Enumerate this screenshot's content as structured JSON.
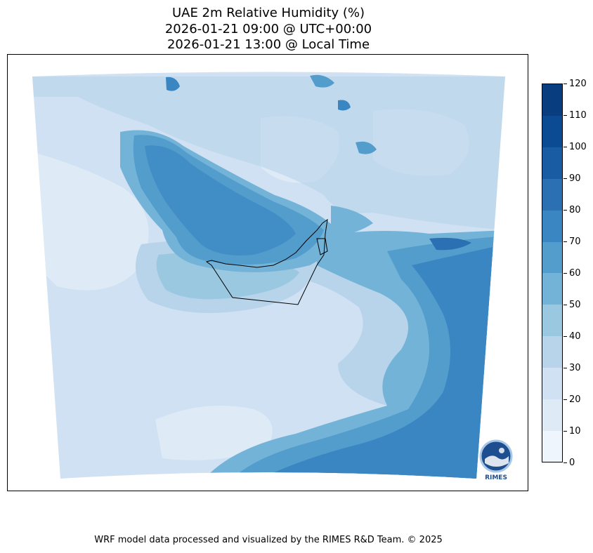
{
  "title": {
    "line1": "UAE 2m Relative Humidity (%)",
    "line2": "2026-01-21 09:00 @ UTC+00:00",
    "line3": "2026-01-21 13:00 @ Local Time"
  },
  "colorbar": {
    "ticks": [
      "120",
      "110",
      "100",
      "90",
      "80",
      "70",
      "60",
      "50",
      "40",
      "30",
      "20",
      "10",
      "0"
    ],
    "levels": [
      0,
      10,
      20,
      30,
      40,
      50,
      60,
      70,
      80,
      90,
      100,
      110,
      120
    ],
    "colors": [
      "#eef5fc",
      "#deebf7",
      "#cfe1f2",
      "#b7d4ea",
      "#9ac8e0",
      "#73b3d8",
      "#529dcc",
      "#3a86c2",
      "#2a70b2",
      "#1a5ca4",
      "#0b4b93",
      "#083d7f"
    ]
  },
  "map": {
    "palette": {
      "rh10_20": "#deebf7",
      "rh20_30": "#cfe1f2",
      "rh30_40": "#b7d4ea",
      "rh40_50": "#9ac8e0",
      "rh50_60": "#73b3d8",
      "rh60_70": "#529dcc",
      "rh70_80": "#3a86c2",
      "rh80_90": "#2a70b2",
      "rh90_plus": "#1a5ca4"
    },
    "boundary_color": "#000000"
  },
  "logo": {
    "text": "RIMES"
  },
  "footer": "WRF model data processed and visualized by the RIMES R&D Team. © 2025"
}
